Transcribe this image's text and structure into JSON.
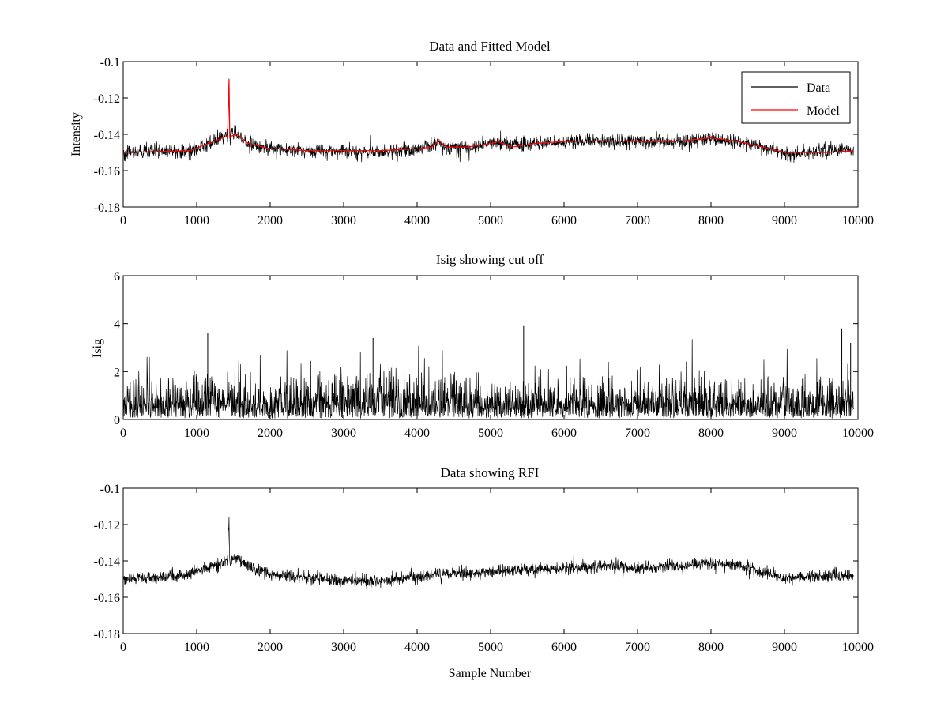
{
  "chart_data": [
    {
      "type": "line",
      "title": "Data and Fitted Model",
      "xlabel": "",
      "ylabel": "Intensity",
      "xlim": [
        0,
        10000
      ],
      "ylim": [
        -0.18,
        -0.1
      ],
      "xticks": [
        "0",
        "1000",
        "2000",
        "3000",
        "4000",
        "5000",
        "6000",
        "7000",
        "8000",
        "9000",
        "10000"
      ],
      "yticks": [
        "-0.1",
        "-0.12",
        "-0.14",
        "-0.16",
        "-0.18"
      ],
      "grid": false,
      "legend_position": "top-right",
      "legend": [
        {
          "label": "Data",
          "color": "#000000"
        },
        {
          "label": "Model",
          "color": "#ff0000"
        }
      ],
      "series": [
        {
          "name": "Data",
          "color": "#000000",
          "kind": "noisy",
          "noise": 0.0035,
          "x": [
            0,
            500,
            900,
            1100,
            1350,
            1420,
            1440,
            1450,
            1470,
            1550,
            1700,
            1900,
            2000,
            2100,
            2500,
            3000,
            3500,
            4000,
            4200,
            4300,
            4400,
            4700,
            5000,
            5100,
            5300,
            5600,
            6000,
            6500,
            7000,
            7500,
            8000,
            8300,
            8600,
            8800,
            9000,
            9300,
            9600,
            9940
          ],
          "y": [
            -0.1505,
            -0.1495,
            -0.149,
            -0.146,
            -0.142,
            -0.141,
            -0.112,
            -0.142,
            -0.138,
            -0.14,
            -0.145,
            -0.147,
            -0.148,
            -0.148,
            -0.149,
            -0.149,
            -0.15,
            -0.148,
            -0.146,
            -0.144,
            -0.147,
            -0.147,
            -0.145,
            -0.144,
            -0.146,
            -0.145,
            -0.144,
            -0.1435,
            -0.144,
            -0.144,
            -0.1425,
            -0.1435,
            -0.146,
            -0.148,
            -0.151,
            -0.15,
            -0.149,
            -0.149
          ]
        },
        {
          "name": "Model",
          "color": "#ff0000",
          "kind": "smooth",
          "x": [
            0,
            500,
            900,
            1100,
            1350,
            1420,
            1440,
            1450,
            1470,
            1550,
            1700,
            1900,
            2000,
            2100,
            2500,
            3000,
            3500,
            4000,
            4200,
            4300,
            4400,
            4700,
            5000,
            5100,
            5300,
            5600,
            6000,
            6500,
            7000,
            7500,
            8000,
            8300,
            8600,
            8800,
            9000,
            9300,
            9600,
            9940
          ],
          "y": [
            -0.15,
            -0.1495,
            -0.149,
            -0.146,
            -0.142,
            -0.141,
            -0.11,
            -0.142,
            -0.141,
            -0.14,
            -0.145,
            -0.147,
            -0.148,
            -0.148,
            -0.149,
            -0.149,
            -0.149,
            -0.148,
            -0.147,
            -0.1435,
            -0.147,
            -0.147,
            -0.145,
            -0.144,
            -0.147,
            -0.145,
            -0.144,
            -0.1435,
            -0.144,
            -0.144,
            -0.142,
            -0.1435,
            -0.146,
            -0.148,
            -0.15,
            -0.15,
            -0.15,
            -0.149
          ]
        }
      ]
    },
    {
      "type": "line",
      "title": "Isig showing cut off",
      "xlabel": "",
      "ylabel": "Isig",
      "xlim": [
        0,
        10000
      ],
      "ylim": [
        0,
        6
      ],
      "xticks": [
        "0",
        "1000",
        "2000",
        "3000",
        "4000",
        "5000",
        "6000",
        "7000",
        "8000",
        "9000",
        "10000"
      ],
      "yticks": [
        "0",
        "2",
        "4",
        "6"
      ],
      "grid": false,
      "series": [
        {
          "name": "",
          "color": "#000000",
          "kind": "positive-noise",
          "x": [
            0,
            1000,
            2000,
            3000,
            4000,
            5000,
            6000,
            7000,
            8000,
            9000,
            9940
          ],
          "y": [
            1.0,
            1.1,
            1.0,
            1.2,
            1.1,
            1.0,
            1.0,
            1.0,
            1.0,
            1.0,
            1.0
          ],
          "peaks": [
            {
              "x": 1150,
              "y": 3.6
            },
            {
              "x": 3400,
              "y": 3.4
            },
            {
              "x": 5450,
              "y": 3.9
            },
            {
              "x": 9780,
              "y": 3.8
            },
            {
              "x": 9900,
              "y": 3.2
            }
          ]
        }
      ]
    },
    {
      "type": "line",
      "title": "Data showing RFI",
      "xlabel": "Sample Number",
      "ylabel": "",
      "xlim": [
        0,
        10000
      ],
      "ylim": [
        -0.18,
        -0.1
      ],
      "xticks": [
        "0",
        "1000",
        "2000",
        "3000",
        "4000",
        "5000",
        "6000",
        "7000",
        "8000",
        "9000",
        "10000"
      ],
      "yticks": [
        "-0.1",
        "-0.12",
        "-0.14",
        "-0.16",
        "-0.18"
      ],
      "grid": false,
      "series": [
        {
          "name": "",
          "color": "#000000",
          "kind": "noisy",
          "noise": 0.003,
          "x": [
            0,
            500,
            900,
            1100,
            1350,
            1420,
            1440,
            1450,
            1470,
            1550,
            1700,
            1900,
            2100,
            2500,
            3000,
            3500,
            4000,
            4500,
            5000,
            5500,
            6000,
            6500,
            7000,
            7500,
            8000,
            8300,
            8600,
            9000,
            9300,
            9600,
            9940
          ],
          "y": [
            -0.15,
            -0.1495,
            -0.147,
            -0.144,
            -0.141,
            -0.14,
            -0.113,
            -0.145,
            -0.138,
            -0.139,
            -0.143,
            -0.146,
            -0.148,
            -0.149,
            -0.151,
            -0.151,
            -0.149,
            -0.147,
            -0.146,
            -0.145,
            -0.144,
            -0.143,
            -0.144,
            -0.143,
            -0.141,
            -0.142,
            -0.145,
            -0.15,
            -0.149,
            -0.148,
            -0.149
          ]
        }
      ]
    }
  ]
}
